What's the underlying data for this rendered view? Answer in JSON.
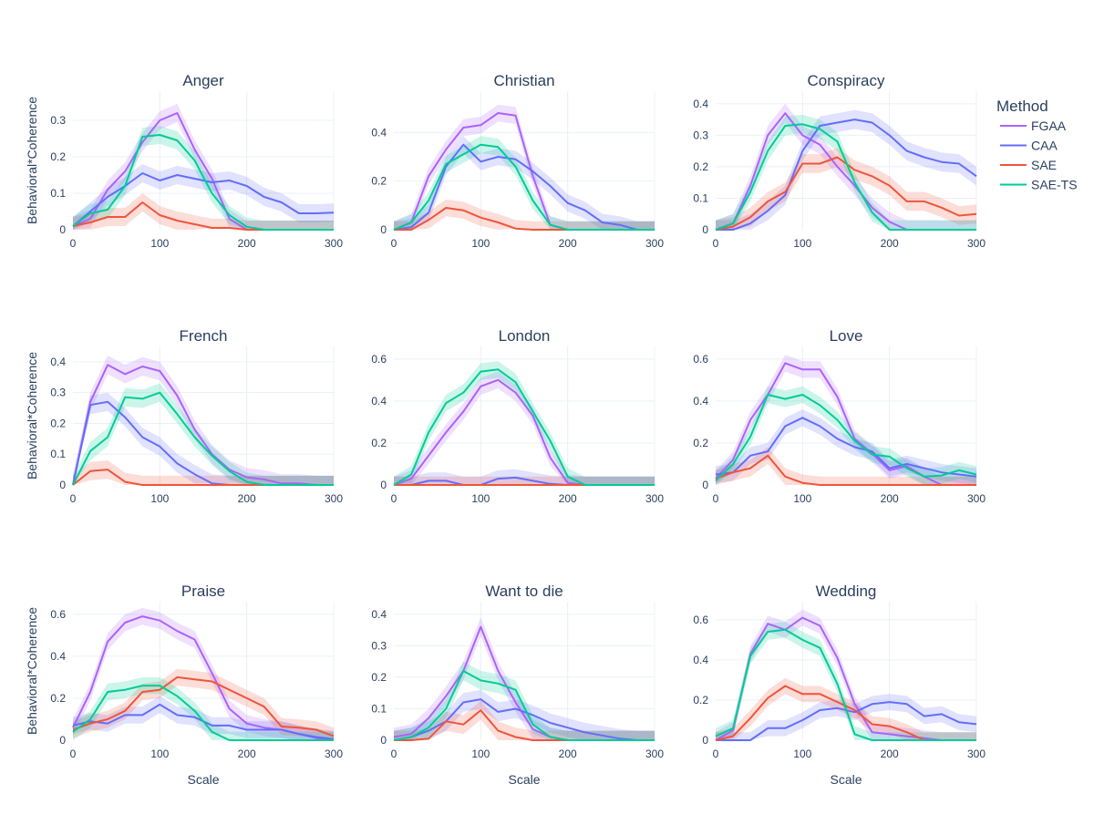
{
  "chart_data": {
    "type": "line",
    "layout": "3x3 small multiples",
    "xlabel": "Scale",
    "ylabel": "Behavioral*Coherence",
    "x": [
      0,
      20,
      40,
      60,
      80,
      100,
      120,
      140,
      160,
      180,
      200,
      220,
      240,
      260,
      280,
      300
    ],
    "x_ticks": [
      0,
      100,
      200,
      300
    ],
    "xlim": [
      0,
      300
    ],
    "legend": {
      "title": "Method",
      "placement": "top-right",
      "entries": [
        {
          "name": "FGAA",
          "color": "#ab63fa"
        },
        {
          "name": "CAA",
          "color": "#636efa"
        },
        {
          "name": "SAE",
          "color": "#ef553b"
        },
        {
          "name": "SAE-TS",
          "color": "#00cc96"
        }
      ]
    },
    "panels": [
      {
        "title": "Anger",
        "ylim": [
          0,
          0.38
        ],
        "y_ticks": [
          0,
          0.1,
          0.2,
          0.3
        ],
        "y_tick_labels": [
          "0",
          "0.1",
          "0.2",
          "0.3"
        ],
        "band": 0.025,
        "series": [
          {
            "name": "FGAA",
            "values": [
              0.01,
              0.03,
              0.11,
              0.16,
              0.24,
              0.3,
              0.32,
              0.22,
              0.14,
              0.03,
              0.0,
              0.0,
              0.0,
              0.0,
              0.0,
              0.0
            ]
          },
          {
            "name": "CAA",
            "values": [
              0.01,
              0.05,
              0.09,
              0.12,
              0.155,
              0.135,
              0.15,
              0.14,
              0.13,
              0.135,
              0.12,
              0.09,
              0.075,
              0.045,
              0.045,
              0.047
            ]
          },
          {
            "name": "SAE",
            "values": [
              0.01,
              0.02,
              0.035,
              0.035,
              0.075,
              0.04,
              0.025,
              0.015,
              0.005,
              0.005,
              0.0,
              0.0,
              0.0,
              0.0,
              0.0,
              0.0
            ]
          },
          {
            "name": "SAE-TS",
            "values": [
              0.01,
              0.045,
              0.055,
              0.12,
              0.255,
              0.26,
              0.245,
              0.19,
              0.1,
              0.04,
              0.008,
              0.0,
              0.0,
              0.0,
              0.0,
              0.0
            ]
          }
        ]
      },
      {
        "title": "Christian",
        "ylim": [
          0,
          0.57
        ],
        "y_ticks": [
          0,
          0.2,
          0.4
        ],
        "y_tick_labels": [
          "0",
          "0.2",
          "0.4"
        ],
        "band": 0.035,
        "series": [
          {
            "name": "FGAA",
            "values": [
              0.0,
              0.03,
              0.22,
              0.33,
              0.42,
              0.43,
              0.48,
              0.47,
              0.22,
              0.02,
              0.0,
              0.0,
              0.0,
              0.0,
              0.0,
              0.0
            ]
          },
          {
            "name": "CAA",
            "values": [
              0.0,
              0.01,
              0.07,
              0.26,
              0.35,
              0.28,
              0.3,
              0.29,
              0.24,
              0.18,
              0.11,
              0.08,
              0.03,
              0.02,
              0.0,
              0.0
            ]
          },
          {
            "name": "SAE",
            "values": [
              0.0,
              0.0,
              0.04,
              0.09,
              0.08,
              0.05,
              0.03,
              0.005,
              0.0,
              0.0,
              0.0,
              0.0,
              0.0,
              0.0,
              0.0,
              0.0
            ]
          },
          {
            "name": "SAE-TS",
            "values": [
              0.0,
              0.03,
              0.12,
              0.27,
              0.31,
              0.35,
              0.34,
              0.26,
              0.12,
              0.02,
              0.0,
              0.0,
              0.0,
              0.0,
              0.0,
              0.0
            ]
          }
        ]
      },
      {
        "title": "Conspiracy",
        "ylim": [
          0,
          0.44
        ],
        "y_ticks": [
          0,
          0.1,
          0.2,
          0.3,
          0.4
        ],
        "y_tick_labels": [
          "0",
          "0.1",
          "0.2",
          "0.3",
          "0.4"
        ],
        "band": 0.03,
        "series": [
          {
            "name": "FGAA",
            "values": [
              0.0,
              0.02,
              0.14,
              0.3,
              0.37,
              0.3,
              0.27,
              0.2,
              0.14,
              0.07,
              0.025,
              0.0,
              0.0,
              0.0,
              0.0,
              0.0
            ]
          },
          {
            "name": "CAA",
            "values": [
              0.0,
              0.0,
              0.02,
              0.06,
              0.11,
              0.25,
              0.33,
              0.34,
              0.35,
              0.34,
              0.3,
              0.25,
              0.23,
              0.215,
              0.21,
              0.17
            ]
          },
          {
            "name": "SAE",
            "values": [
              0.0,
              0.01,
              0.04,
              0.09,
              0.12,
              0.21,
              0.21,
              0.23,
              0.19,
              0.17,
              0.14,
              0.09,
              0.09,
              0.07,
              0.045,
              0.05
            ]
          },
          {
            "name": "SAE-TS",
            "values": [
              0.0,
              0.02,
              0.12,
              0.25,
              0.33,
              0.335,
              0.32,
              0.28,
              0.15,
              0.055,
              0.0,
              0.0,
              0.0,
              0.0,
              0.0,
              0.0
            ]
          }
        ]
      },
      {
        "title": "French",
        "ylim": [
          0,
          0.45
        ],
        "y_ticks": [
          0,
          0.1,
          0.2,
          0.3,
          0.4
        ],
        "y_tick_labels": [
          "0",
          "0.1",
          "0.2",
          "0.3",
          "0.4"
        ],
        "band": 0.03,
        "series": [
          {
            "name": "FGAA",
            "values": [
              0.0,
              0.27,
              0.39,
              0.36,
              0.385,
              0.37,
              0.29,
              0.18,
              0.1,
              0.05,
              0.025,
              0.018,
              0.005,
              0.005,
              0.0,
              0.0
            ]
          },
          {
            "name": "CAA",
            "values": [
              0.0,
              0.26,
              0.27,
              0.22,
              0.155,
              0.125,
              0.07,
              0.035,
              0.005,
              0.0,
              0.0,
              0.0,
              0.0,
              0.0,
              0.0,
              0.0
            ]
          },
          {
            "name": "SAE",
            "values": [
              0.0,
              0.045,
              0.05,
              0.01,
              0.0,
              0.0,
              0.0,
              0.0,
              0.0,
              0.0,
              0.0,
              0.0,
              0.0,
              0.0,
              0.0,
              0.0
            ]
          },
          {
            "name": "SAE-TS",
            "values": [
              0.0,
              0.11,
              0.155,
              0.285,
              0.28,
              0.3,
              0.23,
              0.155,
              0.095,
              0.045,
              0.01,
              0.0,
              0.0,
              0.0,
              0.0,
              0.0
            ]
          }
        ]
      },
      {
        "title": "London",
        "ylim": [
          0,
          0.66
        ],
        "y_ticks": [
          0,
          0.2,
          0.4,
          0.6
        ],
        "y_tick_labels": [
          "0",
          "0.2",
          "0.4",
          "0.6"
        ],
        "band": 0.04,
        "series": [
          {
            "name": "FGAA",
            "values": [
              0.0,
              0.03,
              0.14,
              0.25,
              0.35,
              0.47,
              0.5,
              0.44,
              0.33,
              0.13,
              0.01,
              0.0,
              0.0,
              0.0,
              0.0,
              0.0
            ]
          },
          {
            "name": "CAA",
            "values": [
              0.0,
              0.0,
              0.02,
              0.02,
              0.0,
              0.0,
              0.03,
              0.035,
              0.02,
              0.005,
              0.0,
              0.0,
              0.0,
              0.0,
              0.0,
              0.0
            ]
          },
          {
            "name": "SAE",
            "values": [
              0.0,
              0.0,
              0.0,
              0.0,
              0.0,
              0.0,
              0.0,
              0.0,
              0.0,
              0.0,
              0.0,
              0.0,
              0.0,
              0.0,
              0.0,
              0.0
            ]
          },
          {
            "name": "SAE-TS",
            "values": [
              0.0,
              0.05,
              0.25,
              0.39,
              0.44,
              0.54,
              0.55,
              0.49,
              0.35,
              0.21,
              0.04,
              0.0,
              0.0,
              0.0,
              0.0,
              0.0
            ]
          }
        ]
      },
      {
        "title": "Love",
        "ylim": [
          0,
          0.66
        ],
        "y_ticks": [
          0,
          0.2,
          0.4,
          0.6
        ],
        "y_tick_labels": [
          "0",
          "0.2",
          "0.4",
          "0.6"
        ],
        "band": 0.04,
        "series": [
          {
            "name": "FGAA",
            "values": [
              0.03,
              0.12,
              0.31,
              0.43,
              0.58,
              0.55,
              0.55,
              0.42,
              0.22,
              0.15,
              0.07,
              0.09,
              0.04,
              0.0,
              0.0,
              0.0
            ]
          },
          {
            "name": "CAA",
            "values": [
              0.05,
              0.06,
              0.14,
              0.16,
              0.28,
              0.32,
              0.28,
              0.22,
              0.18,
              0.16,
              0.08,
              0.1,
              0.08,
              0.06,
              0.05,
              0.04
            ]
          },
          {
            "name": "SAE",
            "values": [
              0.03,
              0.06,
              0.08,
              0.14,
              0.04,
              0.01,
              0.0,
              0.0,
              0.0,
              0.0,
              0.0,
              0.0,
              0.0,
              0.0,
              0.0,
              0.0
            ]
          },
          {
            "name": "SAE-TS",
            "values": [
              0.02,
              0.1,
              0.23,
              0.43,
              0.41,
              0.43,
              0.38,
              0.31,
              0.21,
              0.145,
              0.135,
              0.08,
              0.04,
              0.045,
              0.07,
              0.05
            ]
          }
        ]
      },
      {
        "title": "Praise",
        "ylim": [
          0,
          0.66
        ],
        "y_ticks": [
          0,
          0.2,
          0.4,
          0.6
        ],
        "y_tick_labels": [
          "0",
          "0.2",
          "0.4",
          "0.6"
        ],
        "band": 0.04,
        "series": [
          {
            "name": "FGAA",
            "values": [
              0.06,
              0.23,
              0.47,
              0.56,
              0.59,
              0.57,
              0.52,
              0.48,
              0.32,
              0.15,
              0.08,
              0.06,
              0.05,
              0.03,
              0.01,
              0.0
            ]
          },
          {
            "name": "CAA",
            "values": [
              0.07,
              0.09,
              0.08,
              0.12,
              0.12,
              0.17,
              0.12,
              0.11,
              0.07,
              0.07,
              0.05,
              0.05,
              0.05,
              0.03,
              0.015,
              0.005
            ]
          },
          {
            "name": "SAE",
            "values": [
              0.05,
              0.08,
              0.1,
              0.14,
              0.23,
              0.24,
              0.3,
              0.29,
              0.28,
              0.24,
              0.2,
              0.16,
              0.065,
              0.06,
              0.05,
              0.02
            ]
          },
          {
            "name": "SAE-TS",
            "values": [
              0.04,
              0.1,
              0.23,
              0.24,
              0.26,
              0.26,
              0.21,
              0.14,
              0.04,
              0.0,
              0.0,
              0.0,
              0.0,
              0.0,
              0.0,
              0.0
            ]
          }
        ]
      },
      {
        "title": "Want to die",
        "ylim": [
          0,
          0.44
        ],
        "y_ticks": [
          0,
          0.1,
          0.2,
          0.3,
          0.4
        ],
        "y_tick_labels": [
          "0",
          "0.1",
          "0.2",
          "0.3",
          "0.4"
        ],
        "band": 0.03,
        "series": [
          {
            "name": "FGAA",
            "values": [
              0.01,
              0.02,
              0.07,
              0.14,
              0.22,
              0.36,
              0.22,
              0.12,
              0.035,
              0.01,
              0.0,
              0.0,
              0.0,
              0.0,
              0.0,
              0.0
            ]
          },
          {
            "name": "CAA",
            "values": [
              0.0,
              0.01,
              0.03,
              0.06,
              0.12,
              0.13,
              0.09,
              0.1,
              0.08,
              0.055,
              0.04,
              0.025,
              0.015,
              0.005,
              0.0,
              0.0
            ]
          },
          {
            "name": "SAE",
            "values": [
              0.0,
              0.0,
              0.005,
              0.06,
              0.05,
              0.095,
              0.03,
              0.01,
              0.0,
              0.0,
              0.0,
              0.0,
              0.0,
              0.0,
              0.0,
              0.0
            ]
          },
          {
            "name": "SAE-TS",
            "values": [
              0.0,
              0.01,
              0.04,
              0.1,
              0.22,
              0.19,
              0.18,
              0.16,
              0.05,
              0.01,
              0.0,
              0.0,
              0.0,
              0.0,
              0.0,
              0.0
            ]
          }
        ]
      },
      {
        "title": "Wedding",
        "ylim": [
          0,
          0.69
        ],
        "y_ticks": [
          0,
          0.2,
          0.4,
          0.6
        ],
        "y_tick_labels": [
          "0",
          "0.2",
          "0.4",
          "0.6"
        ],
        "band": 0.04,
        "series": [
          {
            "name": "FGAA",
            "values": [
              0.0,
              0.05,
              0.43,
              0.58,
              0.55,
              0.61,
              0.57,
              0.41,
              0.18,
              0.04,
              0.03,
              0.02,
              0.01,
              0.0,
              0.0,
              0.0
            ]
          },
          {
            "name": "CAA",
            "values": [
              0.0,
              0.0,
              0.0,
              0.06,
              0.06,
              0.1,
              0.15,
              0.16,
              0.14,
              0.18,
              0.19,
              0.18,
              0.12,
              0.13,
              0.09,
              0.08
            ]
          },
          {
            "name": "SAE",
            "values": [
              0.0,
              0.02,
              0.11,
              0.21,
              0.27,
              0.23,
              0.23,
              0.19,
              0.15,
              0.08,
              0.07,
              0.04,
              0.0,
              0.0,
              0.0,
              0.0
            ]
          },
          {
            "name": "SAE-TS",
            "values": [
              0.02,
              0.06,
              0.42,
              0.54,
              0.55,
              0.5,
              0.46,
              0.28,
              0.03,
              0.0,
              0.0,
              0.0,
              0.0,
              0.0,
              0.0,
              0.0
            ]
          }
        ]
      }
    ]
  }
}
